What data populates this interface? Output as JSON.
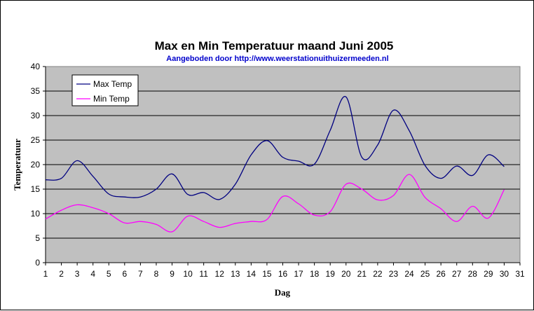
{
  "chart_data": {
    "type": "line",
    "title": "Max en Min Temperatuur maand Juni 2005",
    "subtitle": "Aangeboden door http://www.weerstationuithuizermeeden.nl",
    "xlabel": "Dag",
    "ylabel": "Temperatuur",
    "x": [
      1,
      2,
      3,
      4,
      5,
      6,
      7,
      8,
      9,
      10,
      11,
      12,
      13,
      14,
      15,
      16,
      17,
      18,
      19,
      20,
      21,
      22,
      23,
      24,
      25,
      26,
      27,
      28,
      29,
      30
    ],
    "x_ticks": [
      "1",
      "2",
      "3",
      "4",
      "5",
      "6",
      "7",
      "8",
      "9",
      "10",
      "11",
      "12",
      "13",
      "14",
      "15",
      "16",
      "17",
      "18",
      "19",
      "20",
      "21",
      "22",
      "23",
      "24",
      "25",
      "26",
      "27",
      "28",
      "29",
      "30",
      "31"
    ],
    "y_ticks": [
      "0",
      "5",
      "10",
      "15",
      "20",
      "25",
      "30",
      "35",
      "40"
    ],
    "xlim": [
      1,
      31
    ],
    "ylim": [
      0,
      40
    ],
    "grid": "horizontal",
    "legend_position": "top-left",
    "plot_background": "#c0c0c0",
    "series": [
      {
        "name": "Max Temp",
        "color": "#000080",
        "values": [
          16.9,
          17.2,
          20.8,
          17.6,
          14.0,
          13.4,
          13.4,
          15.0,
          18.1,
          13.9,
          14.3,
          12.9,
          16.0,
          22.0,
          24.9,
          21.5,
          20.7,
          20.1,
          27.0,
          33.8,
          21.5,
          24.0,
          31.1,
          26.9,
          19.8,
          17.2,
          19.7,
          17.8,
          22.0,
          19.6
        ]
      },
      {
        "name": "Min Temp",
        "color": "#ff00ff",
        "values": [
          8.9,
          10.7,
          11.8,
          11.2,
          10.0,
          8.1,
          8.4,
          7.8,
          6.3,
          9.5,
          8.4,
          7.2,
          8.0,
          8.4,
          8.8,
          13.5,
          12.0,
          9.7,
          10.4,
          16.0,
          15.0,
          12.8,
          13.7,
          18.0,
          13.3,
          11.0,
          8.4,
          11.5,
          9.1,
          14.9
        ]
      }
    ]
  }
}
